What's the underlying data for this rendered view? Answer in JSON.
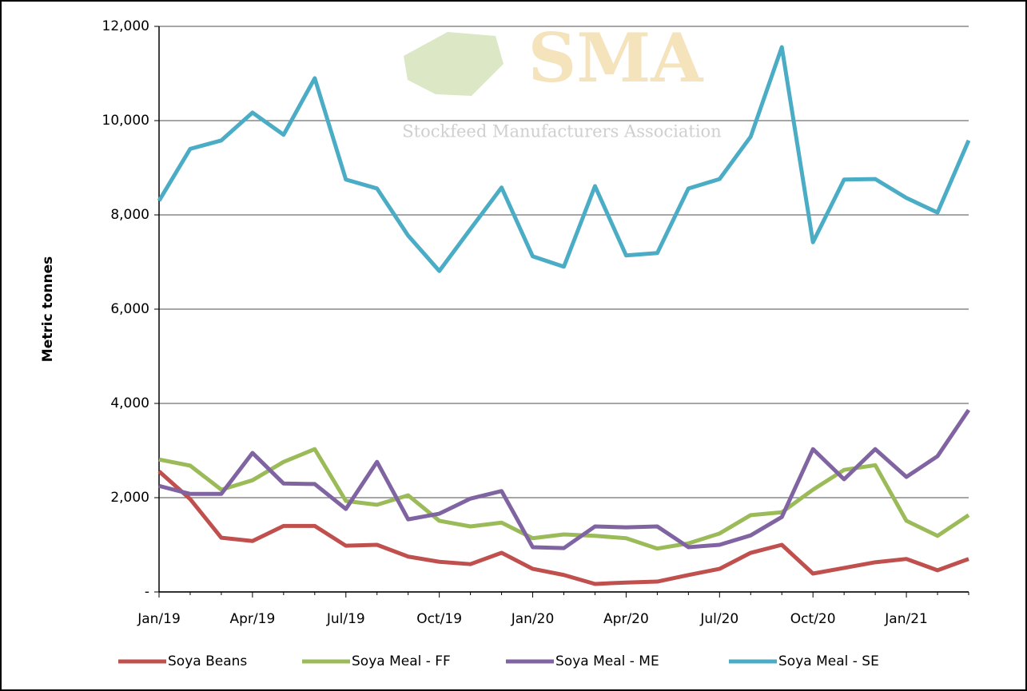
{
  "chart_data": {
    "type": "line",
    "watermark": {
      "title": "SMA",
      "subtitle": "Stockfeed Manufacturers Association"
    },
    "y_label": "Metric tonnes",
    "categories": [
      "Jan/19",
      null,
      null,
      "Apr/19",
      null,
      null,
      "Jul/19",
      null,
      null,
      "Oct/19",
      null,
      null,
      "Jan/20",
      null,
      null,
      "Apr/20",
      null,
      null,
      "Jul/20",
      null,
      null,
      "Oct/20",
      null,
      null,
      "Jan/21",
      null,
      null
    ],
    "ylim": [
      0,
      12000
    ],
    "yticks": [
      {
        "value": 0,
        "label": "-"
      },
      {
        "value": 2000,
        "label": "2,000"
      },
      {
        "value": 4000,
        "label": "4,000"
      },
      {
        "value": 6000,
        "label": "6,000"
      },
      {
        "value": 8000,
        "label": "8,000"
      },
      {
        "value": 10000,
        "label": "10,000"
      },
      {
        "value": 12000,
        "label": "12,000"
      }
    ],
    "grid": true,
    "legend": "bottom",
    "series": [
      {
        "name": "Soya Beans",
        "color": "#c0504d",
        "values": [
          2560,
          1970,
          1150,
          1080,
          1400,
          1400,
          980,
          1000,
          750,
          640,
          590,
          830,
          490,
          360,
          170,
          200,
          220,
          360,
          490,
          830,
          1000,
          390,
          510,
          630,
          700,
          460,
          700
        ]
      },
      {
        "name": "Soya Meal - FF",
        "color": "#9bbb59",
        "values": [
          2810,
          2680,
          2170,
          2370,
          2760,
          3030,
          1930,
          1850,
          2050,
          1510,
          1390,
          1470,
          1140,
          1220,
          1190,
          1140,
          920,
          1030,
          1240,
          1630,
          1690,
          2170,
          2590,
          2690,
          1510,
          1190,
          1630
        ]
      },
      {
        "name": "Soya Meal - ME",
        "color": "#8064a2",
        "values": [
          2250,
          2080,
          2080,
          2950,
          2300,
          2290,
          1760,
          2760,
          1540,
          1660,
          1980,
          2140,
          950,
          930,
          1390,
          1370,
          1390,
          950,
          1000,
          1200,
          1590,
          3030,
          2390,
          3030,
          2440,
          2880,
          3860
        ]
      },
      {
        "name": "Soya Meal - SE",
        "color": "#4bacc6",
        "values": [
          8300,
          9400,
          9580,
          10170,
          9700,
          10900,
          8750,
          8560,
          7560,
          6810,
          7700,
          8580,
          7120,
          6900,
          8610,
          7140,
          7190,
          8560,
          8760,
          9660,
          11560,
          7420,
          8750,
          8760,
          8360,
          8050,
          9580
        ]
      }
    ]
  }
}
